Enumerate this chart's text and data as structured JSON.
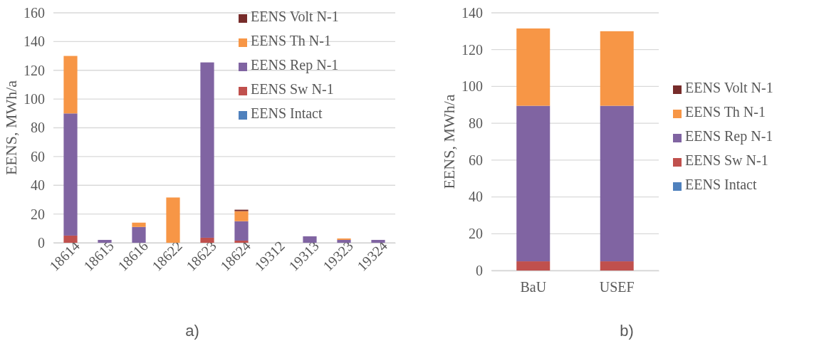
{
  "chart_data": [
    {
      "type": "bar",
      "stacked": true,
      "ylabel": "EENS, MWh/a",
      "categories": [
        "18614",
        "18615",
        "18616",
        "18622",
        "18623",
        "18624",
        "19312",
        "19313",
        "19323",
        "19324"
      ],
      "ylim": [
        0,
        160
      ],
      "yticks": [
        0,
        20,
        40,
        60,
        80,
        100,
        120,
        140,
        160
      ],
      "grid": "y",
      "legend": "top right",
      "annotations": [
        "a)"
      ],
      "series": [
        {
          "name": "EENS Intact",
          "color": "#4f81bd",
          "values": [
            0,
            0,
            0,
            0,
            0,
            0,
            0,
            0,
            0,
            0
          ]
        },
        {
          "name": "EENS Sw N-1",
          "color": "#c0504d",
          "values": [
            5,
            0,
            0,
            0,
            3.5,
            1.5,
            0,
            0,
            0,
            0
          ]
        },
        {
          "name": "EENS Rep N-1",
          "color": "#8064a2",
          "values": [
            85,
            2,
            11,
            0,
            122,
            13.5,
            0,
            4.5,
            2,
            2
          ]
        },
        {
          "name": "EENS Th N-1",
          "color": "#f79646",
          "values": [
            40,
            0,
            3,
            31.5,
            0,
            7,
            0,
            0,
            1,
            0
          ]
        },
        {
          "name": "EENS Volt N-1",
          "color": "#772c2a",
          "values": [
            0,
            0,
            0,
            0,
            0,
            1,
            0,
            0,
            0,
            0
          ]
        }
      ]
    },
    {
      "type": "bar",
      "stacked": true,
      "ylabel": "EENS, MWh/a",
      "categories": [
        "BaU",
        "USEF"
      ],
      "ylim": [
        0,
        140
      ],
      "yticks": [
        0,
        20,
        40,
        60,
        80,
        100,
        120,
        140
      ],
      "grid": "y",
      "legend": "right",
      "annotations": [
        "b)"
      ],
      "series": [
        {
          "name": "EENS Intact",
          "color": "#4f81bd",
          "values": [
            0,
            0
          ]
        },
        {
          "name": "EENS Sw N-1",
          "color": "#c0504d",
          "values": [
            5,
            5
          ]
        },
        {
          "name": "EENS Rep N-1",
          "color": "#8064a2",
          "values": [
            84.5,
            84.5
          ]
        },
        {
          "name": "EENS Th N-1",
          "color": "#f79646",
          "values": [
            42,
            40.5
          ]
        },
        {
          "name": "EENS Volt N-1",
          "color": "#772c2a",
          "values": [
            0,
            0
          ]
        }
      ]
    }
  ]
}
